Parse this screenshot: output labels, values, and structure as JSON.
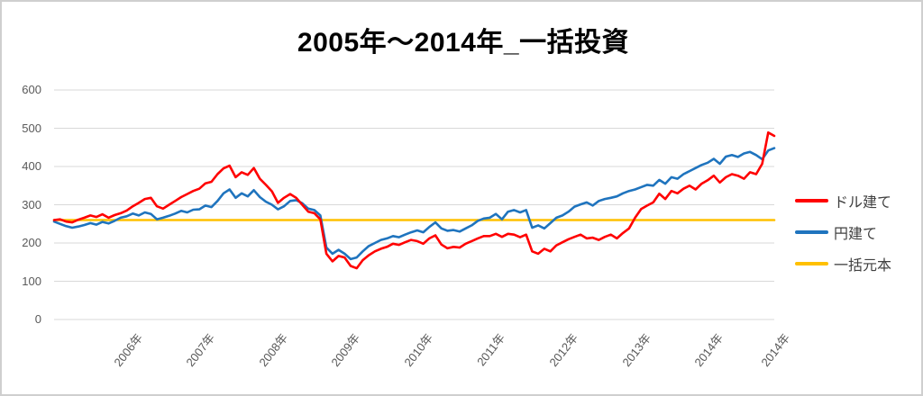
{
  "chart_data": {
    "type": "line",
    "title": "2005年〜2014年_一括投資",
    "x_unit": "month",
    "x_start": "2005-01",
    "x_end": "2014-12",
    "n_points": 120,
    "ylim": [
      0,
      600
    ],
    "yticks": [
      0,
      100,
      200,
      300,
      400,
      500,
      600
    ],
    "grid": true,
    "gridline_color": "#D9D9D9",
    "axis_label_color": "#595959",
    "legend_position": "right",
    "x_tick_labels": [
      {
        "label": "2006年",
        "month_index": 12
      },
      {
        "label": "2007年",
        "month_index": 24
      },
      {
        "label": "2008年",
        "month_index": 36
      },
      {
        "label": "2009年",
        "month_index": 48
      },
      {
        "label": "2010年",
        "month_index": 60
      },
      {
        "label": "2011年",
        "month_index": 72
      },
      {
        "label": "2012年",
        "month_index": 84
      },
      {
        "label": "2013年",
        "month_index": 96
      },
      {
        "label": "2014年",
        "month_index": 108
      },
      {
        "label": "2014年",
        "month_index": 119
      }
    ],
    "series": [
      {
        "name": "ドル建て",
        "color": "#FF0000",
        "values": [
          260,
          262,
          256,
          254,
          261,
          266,
          272,
          268,
          275,
          266,
          273,
          278,
          285,
          296,
          305,
          315,
          318,
          296,
          290,
          300,
          310,
          320,
          328,
          336,
          342,
          356,
          360,
          380,
          395,
          402,
          372,
          385,
          378,
          396,
          368,
          352,
          335,
          305,
          318,
          328,
          318,
          300,
          282,
          278,
          262,
          172,
          152,
          166,
          162,
          140,
          134,
          155,
          168,
          178,
          185,
          190,
          198,
          195,
          202,
          208,
          205,
          198,
          212,
          220,
          196,
          186,
          190,
          188,
          198,
          205,
          212,
          218,
          218,
          224,
          216,
          224,
          222,
          215,
          222,
          178,
          172,
          185,
          178,
          194,
          202,
          210,
          216,
          222,
          212,
          214,
          208,
          216,
          222,
          212,
          226,
          238,
          266,
          289,
          298,
          306,
          329,
          315,
          336,
          330,
          342,
          350,
          340,
          355,
          364,
          376,
          358,
          372,
          380,
          376,
          368,
          385,
          380,
          407,
          489,
          480
        ]
      },
      {
        "name": "円建て",
        "color": "#1F74BE",
        "values": [
          256,
          250,
          244,
          240,
          243,
          247,
          252,
          248,
          255,
          251,
          258,
          266,
          270,
          277,
          272,
          280,
          276,
          262,
          266,
          271,
          277,
          284,
          280,
          287,
          288,
          298,
          294,
          310,
          330,
          340,
          318,
          330,
          322,
          338,
          320,
          308,
          300,
          288,
          296,
          310,
          312,
          304,
          290,
          286,
          272,
          188,
          172,
          182,
          172,
          158,
          162,
          178,
          192,
          200,
          208,
          212,
          218,
          215,
          222,
          228,
          233,
          228,
          242,
          254,
          238,
          232,
          234,
          230,
          238,
          246,
          258,
          264,
          266,
          276,
          262,
          282,
          286,
          280,
          286,
          240,
          246,
          238,
          252,
          266,
          272,
          282,
          295,
          301,
          306,
          298,
          310,
          315,
          318,
          322,
          330,
          336,
          340,
          346,
          352,
          350,
          365,
          355,
          372,
          368,
          380,
          388,
          396,
          404,
          410,
          420,
          407,
          426,
          430,
          425,
          434,
          438,
          430,
          419,
          442,
          448
        ]
      },
      {
        "name": "一括元本",
        "color": "#FFC000",
        "constant": 260
      }
    ]
  }
}
